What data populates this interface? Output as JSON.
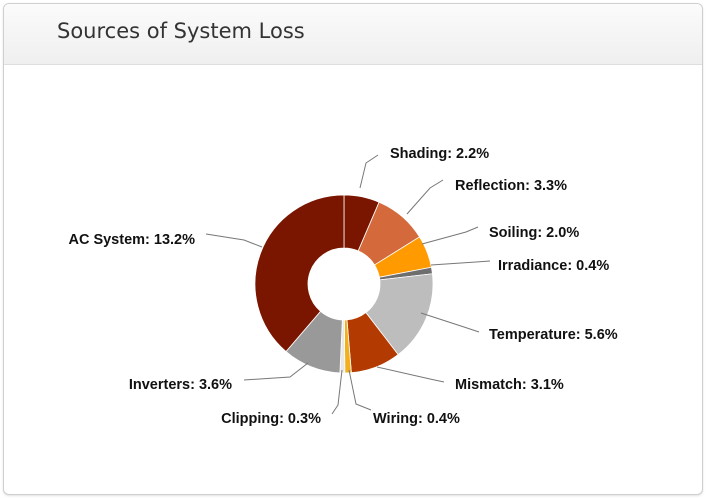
{
  "panel": {
    "title": "Sources of System Loss"
  },
  "chart_data": {
    "type": "pie",
    "title": "",
    "donut": true,
    "slices": [
      {
        "name": "Shading",
        "value": 2.2,
        "label": "Shading: 2.2%",
        "color": "#7a1500"
      },
      {
        "name": "Reflection",
        "value": 3.3,
        "label": "Reflection: 3.3%",
        "color": "#d4693b"
      },
      {
        "name": "Soiling",
        "value": 2.0,
        "label": "Soiling: 2.0%",
        "color": "#ff9a00"
      },
      {
        "name": "Irradiance",
        "value": 0.4,
        "label": "Irradiance: 0.4%",
        "color": "#6e6e6e"
      },
      {
        "name": "Temperature",
        "value": 5.6,
        "label": "Temperature: 5.6%",
        "color": "#bdbdbd"
      },
      {
        "name": "Mismatch",
        "value": 3.1,
        "label": "Mismatch: 3.1%",
        "color": "#b33a00"
      },
      {
        "name": "Wiring",
        "value": 0.4,
        "label": "Wiring: 0.4%",
        "color": "#f2b01e"
      },
      {
        "name": "Clipping",
        "value": 0.3,
        "label": "Clipping: 0.3%",
        "color": "#e8e8e8"
      },
      {
        "name": "Inverters",
        "value": 3.6,
        "label": "Inverters: 3.6%",
        "color": "#999999"
      },
      {
        "name": "AC System",
        "value": 13.2,
        "label": "AC System: 13.2%",
        "color": "#7a1500"
      }
    ]
  }
}
